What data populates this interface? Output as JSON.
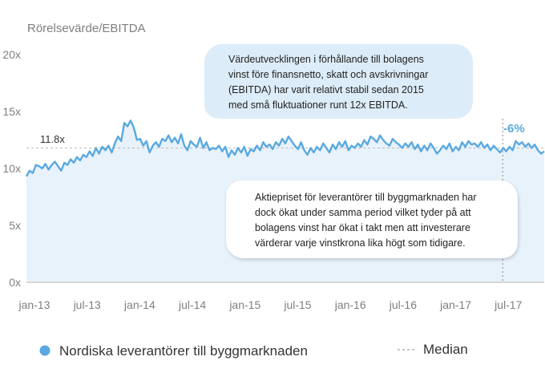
{
  "chart_data": {
    "type": "area",
    "ylabel": "Rörelsevärde/EBITDA",
    "yticks": [
      "0x",
      "5x",
      "10x",
      "15x",
      "20x"
    ],
    "ylim": [
      0,
      20
    ],
    "xticks": [
      "jan-13",
      "jul-13",
      "jan-14",
      "jul-14",
      "jan-15",
      "jul-15",
      "jan-16",
      "jul-16",
      "jan-17",
      "jul-17"
    ],
    "xlim": [
      "2013-01",
      "2017-12"
    ],
    "median": {
      "value": 11.8,
      "label": "11.8x"
    },
    "callout": {
      "label": "-6%",
      "from": "2017-07"
    },
    "annotations": [
      {
        "lines": [
          "Värdeutvecklingen i förhållande till bolagens",
          "vinst före finansnetto, skatt och avskrivningar",
          "(EBITDA) har varit relativt stabil sedan 2015",
          "med små fluktuationer runt 12x EBITDA."
        ]
      },
      {
        "lines": [
          "Aktiepriset för leverantörer till byggmarknaden har",
          "dock ökat under samma period vilket tyder på att",
          "bolagens vinst har ökat i takt men att investerare",
          "värderar varje vinstkrona lika högt som tidigare."
        ]
      }
    ],
    "series": [
      {
        "name": "Nordiska leverantörer till byggmarknaden",
        "color": "#5aa9e0",
        "values": [
          9.3,
          9.8,
          9.6,
          10.3,
          10.2,
          10.0,
          10.4,
          9.9,
          10.3,
          10.6,
          10.2,
          9.8,
          10.5,
          10.3,
          10.8,
          10.5,
          11.0,
          10.7,
          11.2,
          11.0,
          11.5,
          11.1,
          11.8,
          11.3,
          11.9,
          11.6,
          12.0,
          11.4,
          12.2,
          12.8,
          12.4,
          14.0,
          13.7,
          14.2,
          13.6,
          12.5,
          12.6,
          12.0,
          12.4,
          11.4,
          12.0,
          12.3,
          11.9,
          12.6,
          12.4,
          12.9,
          12.3,
          12.7,
          12.2,
          13.0,
          12.0,
          11.6,
          12.4,
          12.1,
          11.9,
          12.7,
          11.8,
          12.3,
          11.6,
          11.8,
          11.7,
          12.0,
          11.5,
          11.9,
          11.0,
          11.6,
          11.2,
          11.8,
          11.4,
          11.9,
          11.1,
          11.7,
          11.5,
          12.0,
          11.6,
          12.3,
          11.9,
          12.1,
          11.7,
          12.3,
          12.0,
          12.6,
          12.2,
          12.8,
          12.4,
          12.0,
          11.7,
          12.3,
          11.6,
          11.2,
          11.8,
          11.4,
          11.9,
          11.6,
          12.2,
          11.8,
          11.4,
          12.1,
          11.7,
          12.3,
          11.9,
          12.4,
          11.6,
          12.0,
          11.8,
          12.2,
          11.9,
          12.5,
          12.1,
          12.8,
          12.6,
          12.3,
          12.9,
          12.5,
          12.2,
          12.0,
          12.6,
          12.3,
          12.1,
          11.8,
          12.2,
          11.9,
          12.3,
          11.7,
          12.1,
          11.5,
          12.0,
          11.6,
          12.2,
          11.8,
          11.3,
          11.6,
          12.0,
          11.7,
          12.2,
          11.5,
          11.9,
          11.6,
          12.3,
          11.9,
          12.4,
          12.1,
          12.2,
          11.9,
          12.3,
          11.8,
          12.1,
          11.6,
          12.0,
          11.7,
          11.4,
          11.8,
          11.5,
          11.9,
          11.6,
          12.4,
          12.1,
          12.3,
          11.9,
          12.2,
          11.8,
          12.1,
          11.6,
          11.3,
          11.5
        ]
      }
    ],
    "legend": {
      "series": "Nordiska leverantörer till byggmarknaden",
      "median": "Median"
    }
  }
}
